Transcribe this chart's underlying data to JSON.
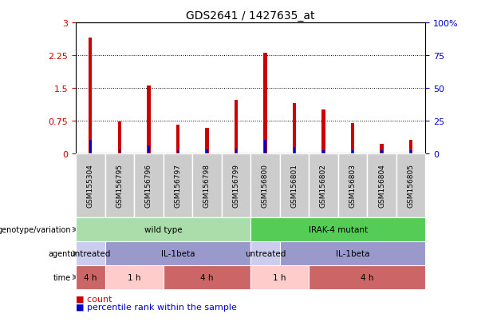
{
  "title": "GDS2641 / 1427635_at",
  "samples": [
    "GSM155304",
    "GSM156795",
    "GSM156796",
    "GSM156797",
    "GSM156798",
    "GSM156799",
    "GSM156800",
    "GSM156801",
    "GSM156802",
    "GSM156803",
    "GSM156804",
    "GSM156805"
  ],
  "count_values": [
    2.65,
    0.72,
    1.55,
    0.65,
    0.58,
    1.22,
    2.3,
    1.15,
    1.0,
    0.68,
    0.22,
    0.3
  ],
  "percentile_values": [
    10.0,
    2.5,
    6.0,
    2.0,
    2.5,
    3.5,
    10.0,
    4.5,
    2.0,
    2.0,
    2.0,
    2.0
  ],
  "ylim_left": [
    0,
    3
  ],
  "ylim_right": [
    0,
    100
  ],
  "yticks_left": [
    0,
    0.75,
    1.5,
    2.25,
    3
  ],
  "yticks_right": [
    0,
    25,
    50,
    75,
    100
  ],
  "ytick_labels_left": [
    "0",
    "0.75",
    "1.5",
    "2.25",
    "3"
  ],
  "ytick_labels_right": [
    "0",
    "25",
    "50",
    "75",
    "100%"
  ],
  "count_color": "#cc0000",
  "percentile_color": "#0000cc",
  "bar_width": 0.12,
  "perc_bar_width": 0.07,
  "genotype_row": {
    "label": "genotype/variation",
    "segments": [
      {
        "text": "wild type",
        "start": 0,
        "end": 6,
        "color": "#aaddaa"
      },
      {
        "text": "IRAK-4 mutant",
        "start": 6,
        "end": 12,
        "color": "#55cc55"
      }
    ]
  },
  "agent_row": {
    "label": "agent",
    "segments": [
      {
        "text": "untreated",
        "start": 0,
        "end": 1,
        "color": "#ccccee"
      },
      {
        "text": "IL-1beta",
        "start": 1,
        "end": 6,
        "color": "#9999cc"
      },
      {
        "text": "untreated",
        "start": 6,
        "end": 7,
        "color": "#ccccee"
      },
      {
        "text": "IL-1beta",
        "start": 7,
        "end": 12,
        "color": "#9999cc"
      }
    ]
  },
  "time_row": {
    "label": "time",
    "segments": [
      {
        "text": "4 h",
        "start": 0,
        "end": 1,
        "color": "#cc6666"
      },
      {
        "text": "1 h",
        "start": 1,
        "end": 3,
        "color": "#ffcccc"
      },
      {
        "text": "4 h",
        "start": 3,
        "end": 6,
        "color": "#cc6666"
      },
      {
        "text": "1 h",
        "start": 6,
        "end": 8,
        "color": "#ffcccc"
      },
      {
        "text": "4 h",
        "start": 8,
        "end": 12,
        "color": "#cc6666"
      }
    ]
  },
  "bg_color": "#ffffff",
  "sample_box_color": "#cccccc",
  "legend_count_text": "count",
  "legend_pct_text": "percentile rank within the sample"
}
